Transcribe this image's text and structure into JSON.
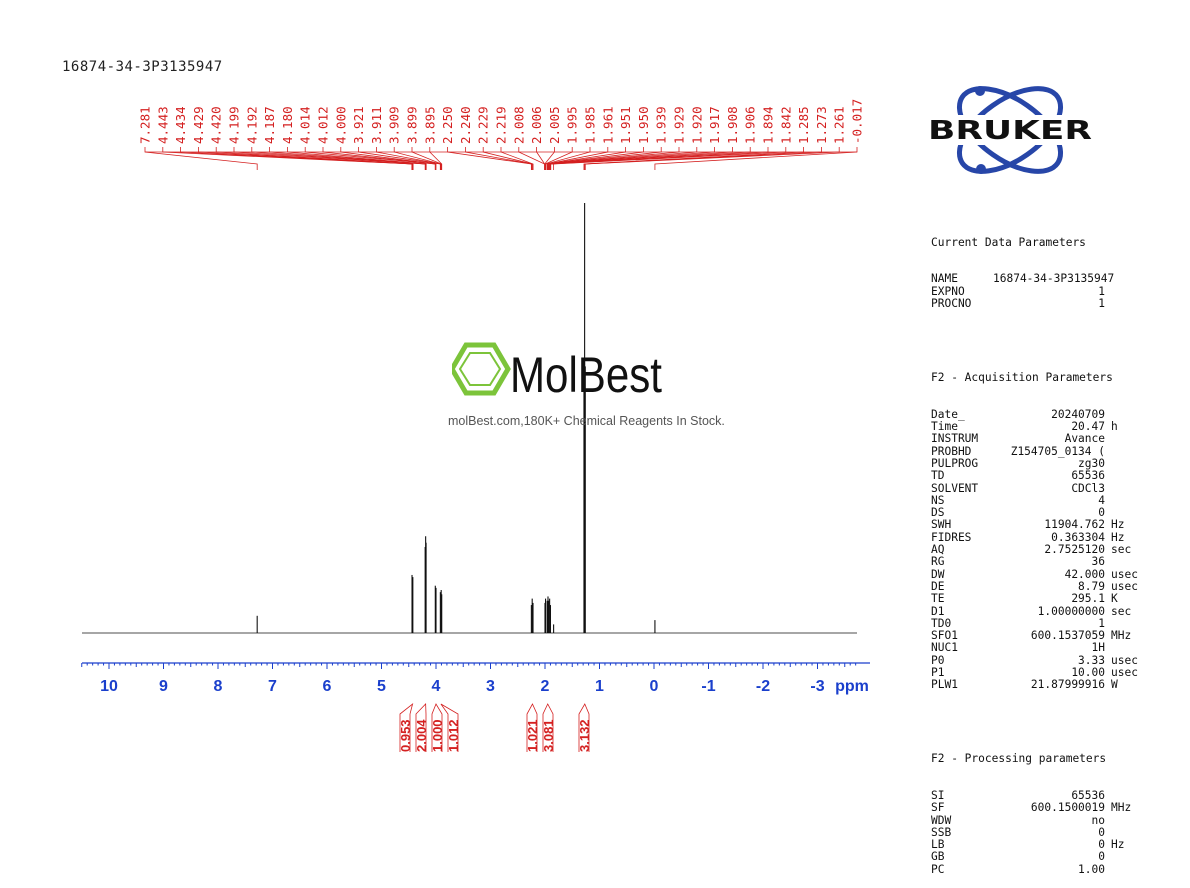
{
  "header": {
    "sample_name": "16874-34-3P3135947"
  },
  "watermark": {
    "brand": "MolBest",
    "caption": "molBest.com,180K+ Chemical Reagents In Stock."
  },
  "logo": {
    "text": "BRUKER",
    "icon": "atom-orbit-logo"
  },
  "colors": {
    "peak_labels": "#d42020",
    "axis": "#1a3fcc",
    "spectrum": "#111111",
    "logo_blue": "#2746a8",
    "watermark_green": "#7cc43a"
  },
  "parameters": {
    "current": {
      "title": "Current Data Parameters",
      "rows": [
        {
          "name": "NAME",
          "value": "16874-34-3P3135947",
          "unit": ""
        },
        {
          "name": "EXPNO",
          "value": "1",
          "unit": ""
        },
        {
          "name": "PROCNO",
          "value": "1",
          "unit": ""
        }
      ]
    },
    "acquisition": {
      "title": "F2 - Acquisition Parameters",
      "rows": [
        {
          "name": "Date_",
          "value": "20240709",
          "unit": ""
        },
        {
          "name": "Time",
          "value": "20.47",
          "unit": "h"
        },
        {
          "name": "INSTRUM",
          "value": "Avance",
          "unit": ""
        },
        {
          "name": "PROBHD",
          "value": "Z154705_0134 (",
          "unit": ""
        },
        {
          "name": "PULPROG",
          "value": "zg30",
          "unit": ""
        },
        {
          "name": "TD",
          "value": "65536",
          "unit": ""
        },
        {
          "name": "SOLVENT",
          "value": "CDCl3",
          "unit": ""
        },
        {
          "name": "NS",
          "value": "4",
          "unit": ""
        },
        {
          "name": "DS",
          "value": "0",
          "unit": ""
        },
        {
          "name": "SWH",
          "value": "11904.762",
          "unit": "Hz"
        },
        {
          "name": "FIDRES",
          "value": "0.363304",
          "unit": "Hz"
        },
        {
          "name": "AQ",
          "value": "2.7525120",
          "unit": "sec"
        },
        {
          "name": "RG",
          "value": "36",
          "unit": ""
        },
        {
          "name": "DW",
          "value": "42.000",
          "unit": "usec"
        },
        {
          "name": "DE",
          "value": "8.79",
          "unit": "usec"
        },
        {
          "name": "TE",
          "value": "295.1",
          "unit": "K"
        },
        {
          "name": "D1",
          "value": "1.00000000",
          "unit": "sec"
        },
        {
          "name": "TD0",
          "value": "1",
          "unit": ""
        },
        {
          "name": "SFO1",
          "value": "600.1537059",
          "unit": "MHz"
        },
        {
          "name": "NUC1",
          "value": "1H",
          "unit": ""
        },
        {
          "name": "P0",
          "value": "3.33",
          "unit": "usec"
        },
        {
          "name": "P1",
          "value": "10.00",
          "unit": "usec"
        },
        {
          "name": "PLW1",
          "value": "21.87999916",
          "unit": "W"
        }
      ]
    },
    "processing": {
      "title": "F2 - Processing parameters",
      "rows": [
        {
          "name": "SI",
          "value": "65536",
          "unit": ""
        },
        {
          "name": "SF",
          "value": "600.1500019",
          "unit": "MHz"
        },
        {
          "name": "WDW",
          "value": "no",
          "unit": ""
        },
        {
          "name": "SSB",
          "value": "0",
          "unit": ""
        },
        {
          "name": "LB",
          "value": "0",
          "unit": "Hz"
        },
        {
          "name": "GB",
          "value": "0",
          "unit": ""
        },
        {
          "name": "PC",
          "value": "1.00",
          "unit": ""
        }
      ]
    }
  },
  "chart_data": {
    "type": "line",
    "xlabel": "ppm",
    "xlim": [
      10.5,
      -3.7
    ],
    "x_reversed": true,
    "x_ticks": [
      10,
      9,
      8,
      7,
      6,
      5,
      4,
      3,
      2,
      1,
      0,
      -1,
      -2,
      -3
    ],
    "peak_labels": [
      "7.281",
      "4.443",
      "4.434",
      "4.429",
      "4.420",
      "4.199",
      "4.192",
      "4.187",
      "4.180",
      "4.014",
      "4.012",
      "4.000",
      "3.921",
      "3.911",
      "3.909",
      "3.899",
      "3.895",
      "2.250",
      "2.240",
      "2.229",
      "2.219",
      "2.008",
      "2.006",
      "2.005",
      "1.995",
      "1.985",
      "1.961",
      "1.951",
      "1.950",
      "1.939",
      "1.929",
      "1.920",
      "1.917",
      "1.908",
      "1.906",
      "1.894",
      "1.842",
      "1.285",
      "1.273",
      "1.261",
      "-0.017"
    ],
    "peaks": [
      {
        "ppm": 7.281,
        "height": 0.04
      },
      {
        "ppm": 4.44,
        "height": 0.135
      },
      {
        "ppm": 4.425,
        "height": 0.13
      },
      {
        "ppm": 4.199,
        "height": 0.2
      },
      {
        "ppm": 4.19,
        "height": 0.225
      },
      {
        "ppm": 4.182,
        "height": 0.21
      },
      {
        "ppm": 4.013,
        "height": 0.11
      },
      {
        "ppm": 4.0,
        "height": 0.105
      },
      {
        "ppm": 3.92,
        "height": 0.095
      },
      {
        "ppm": 3.905,
        "height": 0.1
      },
      {
        "ppm": 3.895,
        "height": 0.09
      },
      {
        "ppm": 2.25,
        "height": 0.065
      },
      {
        "ppm": 2.235,
        "height": 0.08
      },
      {
        "ppm": 2.22,
        "height": 0.07
      },
      {
        "ppm": 2.0,
        "height": 0.07
      },
      {
        "ppm": 1.99,
        "height": 0.08
      },
      {
        "ppm": 1.96,
        "height": 0.075
      },
      {
        "ppm": 1.945,
        "height": 0.085
      },
      {
        "ppm": 1.93,
        "height": 0.075
      },
      {
        "ppm": 1.915,
        "height": 0.08
      },
      {
        "ppm": 1.9,
        "height": 0.065
      },
      {
        "ppm": 1.842,
        "height": 0.02
      },
      {
        "ppm": 1.285,
        "height": 0.62
      },
      {
        "ppm": 1.273,
        "height": 1.0
      },
      {
        "ppm": 1.261,
        "height": 0.62
      },
      {
        "ppm": -0.017,
        "height": 0.03
      }
    ],
    "integrals": [
      {
        "value": "0.953",
        "ppm": 4.43
      },
      {
        "value": "2.004",
        "ppm": 4.19
      },
      {
        "value": "1.000",
        "ppm": 4.0
      },
      {
        "value": "1.012",
        "ppm": 3.91
      },
      {
        "value": "1.021",
        "ppm": 2.23
      },
      {
        "value": "3.081",
        "ppm": 1.95
      },
      {
        "value": "3.132",
        "ppm": 1.27
      }
    ]
  }
}
